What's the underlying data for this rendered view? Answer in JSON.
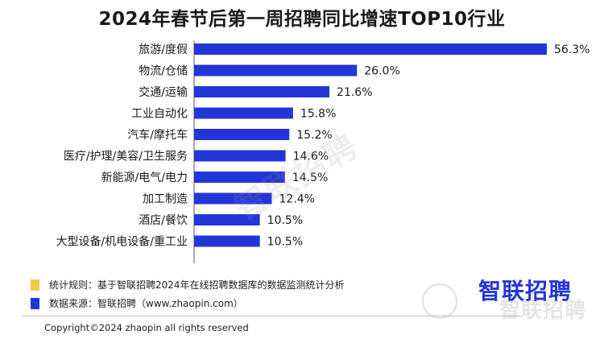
{
  "chart_data": {
    "type": "bar",
    "orientation": "horizontal",
    "title": "2024年春节后第一周招聘同比增速TOP10行业",
    "categories": [
      "旅游/度假",
      "物流/仓储",
      "交通/运输",
      "工业自动化",
      "汽车/摩托车",
      "医疗/护理/美容/卫生服务",
      "新能源/电气/电力",
      "加工制造",
      "酒店/餐饮",
      "大型设备/机电设备/重工业"
    ],
    "values": [
      56.3,
      26.0,
      21.6,
      15.8,
      15.2,
      14.6,
      14.5,
      12.4,
      10.5,
      10.5
    ],
    "value_labels": [
      "56.3%",
      "26.0%",
      "21.6%",
      "15.8%",
      "15.2%",
      "14.6%",
      "14.5%",
      "12.4%",
      "10.5%",
      "10.5%"
    ],
    "bar_color": "#2236d8",
    "xlim": [
      0,
      56.3
    ],
    "grid": false
  },
  "notes": [
    {
      "text": "统计规则：基于智联招聘2024年在线招聘数据库的数据监测统计分析",
      "color": "#f2c849"
    },
    {
      "text": "数据来源：智联招聘（www.zhaopin.com）",
      "color": "#2236d8"
    }
  ],
  "watermark": "智联招聘",
  "brand": {
    "logo_text": "智联招聘",
    "color": "#2236d8"
  },
  "copyright": "Copyright©2024 zhaopin all rights reserved"
}
